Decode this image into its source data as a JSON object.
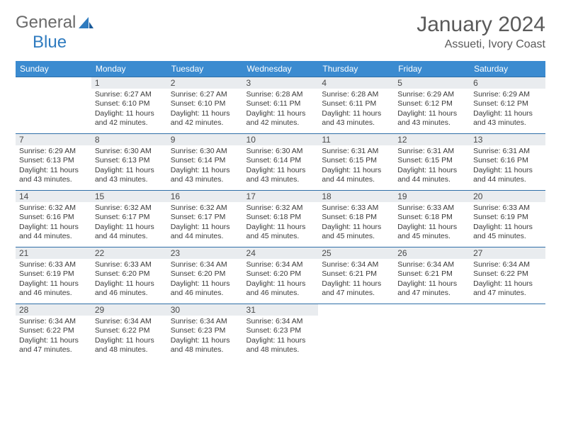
{
  "logo": {
    "text1": "General",
    "text2": "Blue"
  },
  "title": "January 2024",
  "location": "Assueti, Ivory Coast",
  "colors": {
    "header_bg": "#3b8bd0",
    "header_text": "#ffffff",
    "daynum_bg": "#e9ecef",
    "cell_border": "#2f6fa8",
    "logo_blue": "#2f7bbf",
    "logo_gray": "#6a6a6a",
    "body_text": "#3a3a3a"
  },
  "weekdays": [
    "Sunday",
    "Monday",
    "Tuesday",
    "Wednesday",
    "Thursday",
    "Friday",
    "Saturday"
  ],
  "start_offset": 1,
  "days": [
    {
      "n": 1,
      "sr": "6:27 AM",
      "ss": "6:10 PM",
      "dl": "11 hours and 42 minutes."
    },
    {
      "n": 2,
      "sr": "6:27 AM",
      "ss": "6:10 PM",
      "dl": "11 hours and 42 minutes."
    },
    {
      "n": 3,
      "sr": "6:28 AM",
      "ss": "6:11 PM",
      "dl": "11 hours and 42 minutes."
    },
    {
      "n": 4,
      "sr": "6:28 AM",
      "ss": "6:11 PM",
      "dl": "11 hours and 43 minutes."
    },
    {
      "n": 5,
      "sr": "6:29 AM",
      "ss": "6:12 PM",
      "dl": "11 hours and 43 minutes."
    },
    {
      "n": 6,
      "sr": "6:29 AM",
      "ss": "6:12 PM",
      "dl": "11 hours and 43 minutes."
    },
    {
      "n": 7,
      "sr": "6:29 AM",
      "ss": "6:13 PM",
      "dl": "11 hours and 43 minutes."
    },
    {
      "n": 8,
      "sr": "6:30 AM",
      "ss": "6:13 PM",
      "dl": "11 hours and 43 minutes."
    },
    {
      "n": 9,
      "sr": "6:30 AM",
      "ss": "6:14 PM",
      "dl": "11 hours and 43 minutes."
    },
    {
      "n": 10,
      "sr": "6:30 AM",
      "ss": "6:14 PM",
      "dl": "11 hours and 43 minutes."
    },
    {
      "n": 11,
      "sr": "6:31 AM",
      "ss": "6:15 PM",
      "dl": "11 hours and 44 minutes."
    },
    {
      "n": 12,
      "sr": "6:31 AM",
      "ss": "6:15 PM",
      "dl": "11 hours and 44 minutes."
    },
    {
      "n": 13,
      "sr": "6:31 AM",
      "ss": "6:16 PM",
      "dl": "11 hours and 44 minutes."
    },
    {
      "n": 14,
      "sr": "6:32 AM",
      "ss": "6:16 PM",
      "dl": "11 hours and 44 minutes."
    },
    {
      "n": 15,
      "sr": "6:32 AM",
      "ss": "6:17 PM",
      "dl": "11 hours and 44 minutes."
    },
    {
      "n": 16,
      "sr": "6:32 AM",
      "ss": "6:17 PM",
      "dl": "11 hours and 44 minutes."
    },
    {
      "n": 17,
      "sr": "6:32 AM",
      "ss": "6:18 PM",
      "dl": "11 hours and 45 minutes."
    },
    {
      "n": 18,
      "sr": "6:33 AM",
      "ss": "6:18 PM",
      "dl": "11 hours and 45 minutes."
    },
    {
      "n": 19,
      "sr": "6:33 AM",
      "ss": "6:18 PM",
      "dl": "11 hours and 45 minutes."
    },
    {
      "n": 20,
      "sr": "6:33 AM",
      "ss": "6:19 PM",
      "dl": "11 hours and 45 minutes."
    },
    {
      "n": 21,
      "sr": "6:33 AM",
      "ss": "6:19 PM",
      "dl": "11 hours and 46 minutes."
    },
    {
      "n": 22,
      "sr": "6:33 AM",
      "ss": "6:20 PM",
      "dl": "11 hours and 46 minutes."
    },
    {
      "n": 23,
      "sr": "6:34 AM",
      "ss": "6:20 PM",
      "dl": "11 hours and 46 minutes."
    },
    {
      "n": 24,
      "sr": "6:34 AM",
      "ss": "6:20 PM",
      "dl": "11 hours and 46 minutes."
    },
    {
      "n": 25,
      "sr": "6:34 AM",
      "ss": "6:21 PM",
      "dl": "11 hours and 47 minutes."
    },
    {
      "n": 26,
      "sr": "6:34 AM",
      "ss": "6:21 PM",
      "dl": "11 hours and 47 minutes."
    },
    {
      "n": 27,
      "sr": "6:34 AM",
      "ss": "6:22 PM",
      "dl": "11 hours and 47 minutes."
    },
    {
      "n": 28,
      "sr": "6:34 AM",
      "ss": "6:22 PM",
      "dl": "11 hours and 47 minutes."
    },
    {
      "n": 29,
      "sr": "6:34 AM",
      "ss": "6:22 PM",
      "dl": "11 hours and 48 minutes."
    },
    {
      "n": 30,
      "sr": "6:34 AM",
      "ss": "6:23 PM",
      "dl": "11 hours and 48 minutes."
    },
    {
      "n": 31,
      "sr": "6:34 AM",
      "ss": "6:23 PM",
      "dl": "11 hours and 48 minutes."
    }
  ],
  "labels": {
    "sunrise": "Sunrise:",
    "sunset": "Sunset:",
    "daylight": "Daylight:"
  }
}
